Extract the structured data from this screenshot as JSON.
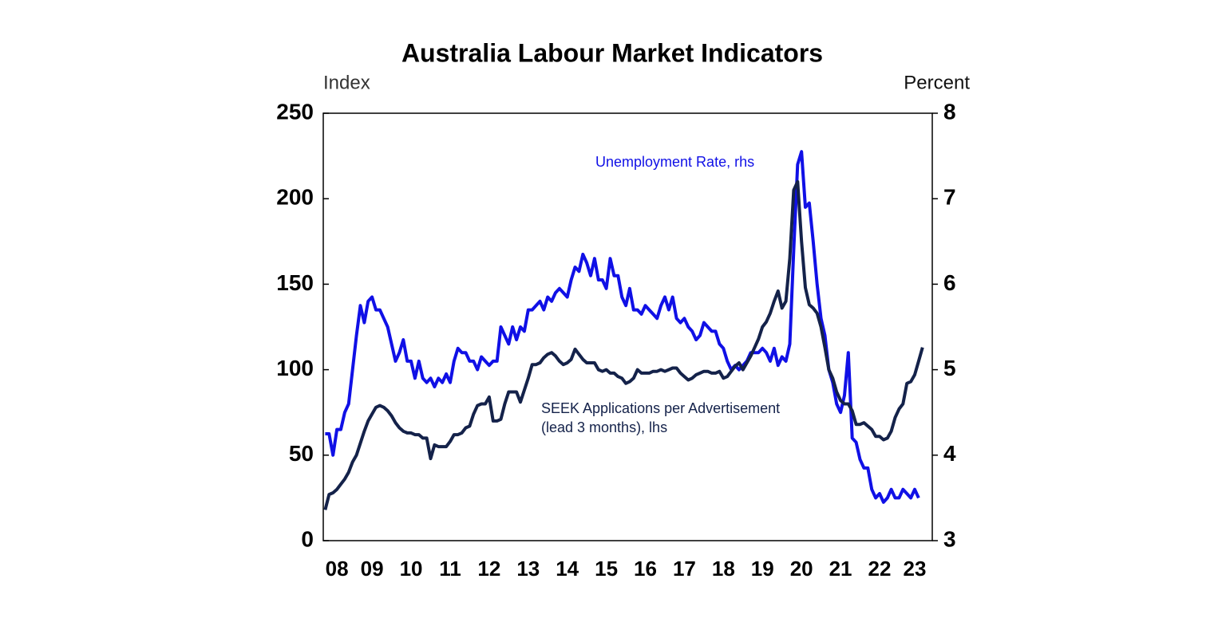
{
  "chart_data": {
    "type": "line",
    "title": "Australia Labour Market Indicators",
    "y_label": "Index",
    "y2_label": "Percent",
    "xlim": [
      2008.25,
      2023.85
    ],
    "xticks": [
      {
        "value": 2008.6,
        "label": "08"
      },
      {
        "value": 2009.5,
        "label": "09"
      },
      {
        "value": 2010.5,
        "label": "10"
      },
      {
        "value": 2011.5,
        "label": "11"
      },
      {
        "value": 2012.5,
        "label": "12"
      },
      {
        "value": 2013.5,
        "label": "13"
      },
      {
        "value": 2014.5,
        "label": "14"
      },
      {
        "value": 2015.5,
        "label": "15"
      },
      {
        "value": 2016.5,
        "label": "16"
      },
      {
        "value": 2017.5,
        "label": "17"
      },
      {
        "value": 2018.5,
        "label": "18"
      },
      {
        "value": 2019.5,
        "label": "19"
      },
      {
        "value": 2020.5,
        "label": "20"
      },
      {
        "value": 2021.5,
        "label": "21"
      },
      {
        "value": 2022.5,
        "label": "22"
      },
      {
        "value": 2023.4,
        "label": "23"
      }
    ],
    "ylim": [
      0,
      250
    ],
    "yticks": [
      0,
      50,
      100,
      150,
      200,
      250
    ],
    "y2lim": [
      3,
      8
    ],
    "y2ticks": [
      3,
      4,
      5,
      6,
      7,
      8
    ],
    "x": [
      2008.3,
      2008.4,
      2008.5,
      2008.6,
      2008.7,
      2008.8,
      2008.9,
      2009.0,
      2009.1,
      2009.2,
      2009.3,
      2009.4,
      2009.5,
      2009.6,
      2009.7,
      2009.8,
      2009.9,
      2010.0,
      2010.1,
      2010.2,
      2010.3,
      2010.4,
      2010.5,
      2010.6,
      2010.7,
      2010.8,
      2010.9,
      2011.0,
      2011.1,
      2011.2,
      2011.3,
      2011.4,
      2011.5,
      2011.6,
      2011.7,
      2011.8,
      2011.9,
      2012.0,
      2012.1,
      2012.2,
      2012.3,
      2012.4,
      2012.5,
      2012.6,
      2012.7,
      2012.8,
      2012.9,
      2013.0,
      2013.1,
      2013.2,
      2013.3,
      2013.4,
      2013.5,
      2013.6,
      2013.7,
      2013.8,
      2013.9,
      2014.0,
      2014.1,
      2014.2,
      2014.3,
      2014.4,
      2014.5,
      2014.6,
      2014.7,
      2014.8,
      2014.9,
      2015.0,
      2015.1,
      2015.2,
      2015.3,
      2015.4,
      2015.5,
      2015.6,
      2015.7,
      2015.8,
      2015.9,
      2016.0,
      2016.1,
      2016.2,
      2016.3,
      2016.4,
      2016.5,
      2016.6,
      2016.7,
      2016.8,
      2016.9,
      2017.0,
      2017.1,
      2017.2,
      2017.3,
      2017.4,
      2017.5,
      2017.6,
      2017.7,
      2017.8,
      2017.9,
      2018.0,
      2018.1,
      2018.2,
      2018.3,
      2018.4,
      2018.5,
      2018.6,
      2018.7,
      2018.8,
      2018.9,
      2019.0,
      2019.1,
      2019.2,
      2019.3,
      2019.4,
      2019.5,
      2019.6,
      2019.7,
      2019.8,
      2019.9,
      2020.0,
      2020.1,
      2020.2,
      2020.3,
      2020.4,
      2020.5,
      2020.6,
      2020.7,
      2020.8,
      2020.9,
      2021.0,
      2021.1,
      2021.2,
      2021.3,
      2021.4,
      2021.5,
      2021.6,
      2021.7,
      2021.8,
      2021.9,
      2022.0,
      2022.1,
      2022.2,
      2022.3,
      2022.4,
      2022.5,
      2022.6,
      2022.7,
      2022.8,
      2022.9,
      2023.0,
      2023.1,
      2023.2,
      2023.3,
      2023.4,
      2023.5,
      2023.6
    ],
    "series": [
      {
        "name": "Unemployment Rate, rhs",
        "color": "#1010e6",
        "axis": "y2",
        "values": [
          4.25,
          4.25,
          4.0,
          4.3,
          4.3,
          4.5,
          4.6,
          5.0,
          5.4,
          5.75,
          5.55,
          5.8,
          5.85,
          5.7,
          5.7,
          5.6,
          5.5,
          5.3,
          5.1,
          5.2,
          5.35,
          5.1,
          5.1,
          4.9,
          5.1,
          4.9,
          4.85,
          4.9,
          4.8,
          4.9,
          4.85,
          4.95,
          4.85,
          5.1,
          5.25,
          5.2,
          5.2,
          5.1,
          5.1,
          5.0,
          5.15,
          5.1,
          5.05,
          5.1,
          5.1,
          5.5,
          5.4,
          5.3,
          5.5,
          5.35,
          5.5,
          5.45,
          5.7,
          5.7,
          5.75,
          5.8,
          5.7,
          5.85,
          5.8,
          5.9,
          5.95,
          5.9,
          5.85,
          6.05,
          6.2,
          6.15,
          6.35,
          6.25,
          6.1,
          6.3,
          6.05,
          6.05,
          5.95,
          6.3,
          6.1,
          6.1,
          5.85,
          5.75,
          5.95,
          5.7,
          5.7,
          5.65,
          5.75,
          5.7,
          5.65,
          5.6,
          5.75,
          5.85,
          5.7,
          5.85,
          5.6,
          5.55,
          5.6,
          5.5,
          5.45,
          5.35,
          5.4,
          5.55,
          5.5,
          5.45,
          5.45,
          5.3,
          5.25,
          5.1,
          5.0,
          5.05,
          5.0,
          5.05,
          5.1,
          5.2,
          5.2,
          5.2,
          5.25,
          5.2,
          5.1,
          5.25,
          5.05,
          5.15,
          5.1,
          5.3,
          6.4,
          7.4,
          7.55,
          6.9,
          6.95,
          6.5,
          6.0,
          5.6,
          5.4,
          5.0,
          4.85,
          4.6,
          4.5,
          4.7,
          5.2,
          4.2,
          4.15,
          3.95,
          3.85,
          3.85,
          3.6,
          3.5,
          3.55,
          3.45,
          3.5,
          3.6,
          3.5,
          3.5,
          3.6,
          3.55,
          3.5,
          3.6,
          3.5,
          null
        ]
      },
      {
        "name": "SEEK Applications per Advertisement (lead 3 months), lhs",
        "color": "#14224a",
        "values": [
          18,
          27,
          28,
          30,
          33,
          36,
          40,
          46,
          50,
          57,
          64,
          70,
          74,
          78,
          79,
          78,
          76,
          73,
          69,
          66,
          64,
          63,
          63,
          62,
          62,
          60,
          60,
          48,
          56,
          55,
          55,
          55,
          58,
          62,
          62,
          63,
          66,
          67,
          74,
          79,
          80,
          80,
          84,
          70,
          70,
          71,
          80,
          87,
          87,
          87,
          81,
          88,
          95,
          103,
          103,
          104,
          107,
          109,
          110,
          108,
          105,
          103,
          104,
          106,
          112,
          109,
          106,
          104,
          104,
          104,
          100,
          99,
          100,
          98,
          98,
          96,
          95,
          92,
          93,
          95,
          100,
          98,
          98,
          98,
          99,
          99,
          100,
          99,
          100,
          101,
          101,
          98,
          96,
          94,
          95,
          97,
          98,
          99,
          99,
          98,
          98,
          99,
          95,
          96,
          99,
          102,
          104,
          100,
          104,
          108,
          113,
          118,
          125,
          128,
          133,
          140,
          146,
          136,
          140,
          165,
          205,
          210,
          175,
          148,
          138,
          136,
          133,
          125,
          113,
          100,
          95,
          87,
          82,
          80,
          80,
          76,
          68,
          68,
          69,
          67,
          65,
          61,
          61,
          59,
          60,
          64,
          72,
          77,
          80,
          92,
          93,
          97,
          105,
          113
        ]
      }
    ],
    "annotations": [
      {
        "lines": [
          "Unemployment Rate, rhs"
        ]
      },
      {
        "lines": [
          "SEEK Applications per Advertisement",
          "(lead 3 months), lhs"
        ]
      }
    ]
  }
}
